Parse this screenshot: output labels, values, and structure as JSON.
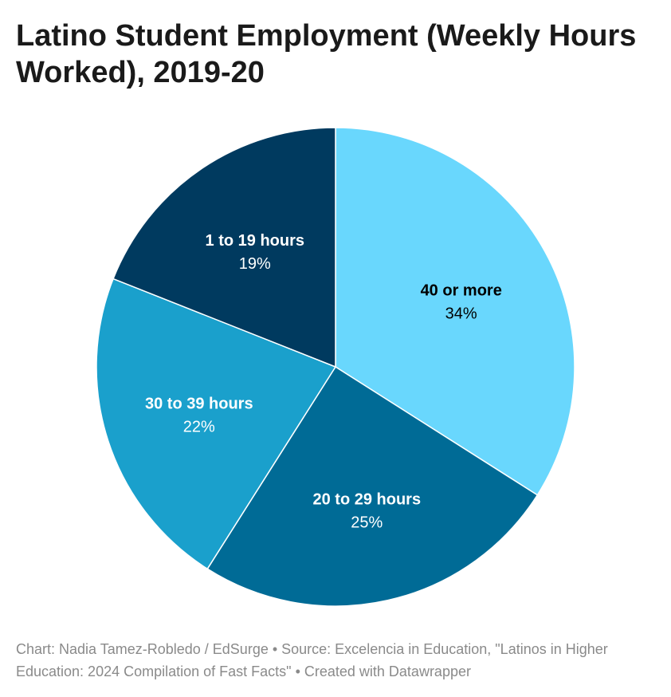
{
  "title": "Latino Student Employment (Weekly Hours Worked), 2019-20",
  "footer": "Chart: Nadia Tamez-Robledo / EdSurge • Source: Excelencia in Education, \"Latinos in Higher Education: 2024 Compilation of Fast Facts\" • Created with Datawrapper",
  "chart_data": {
    "type": "pie",
    "title": "Latino Student Employment (Weekly Hours Worked), 2019-20",
    "slices": [
      {
        "label": "40 or more",
        "value": 34,
        "display": "34%",
        "color": "#69d7fd",
        "text_color": "#000000"
      },
      {
        "label": "20 to 29 hours",
        "value": 25,
        "display": "25%",
        "color": "#006b96",
        "text_color": "#ffffff"
      },
      {
        "label": "30 to 39 hours",
        "value": 22,
        "display": "22%",
        "color": "#1aa0cc",
        "text_color": "#ffffff"
      },
      {
        "label": "1 to 19 hours",
        "value": 19,
        "display": "19%",
        "color": "#003a5f",
        "text_color": "#ffffff"
      }
    ]
  }
}
